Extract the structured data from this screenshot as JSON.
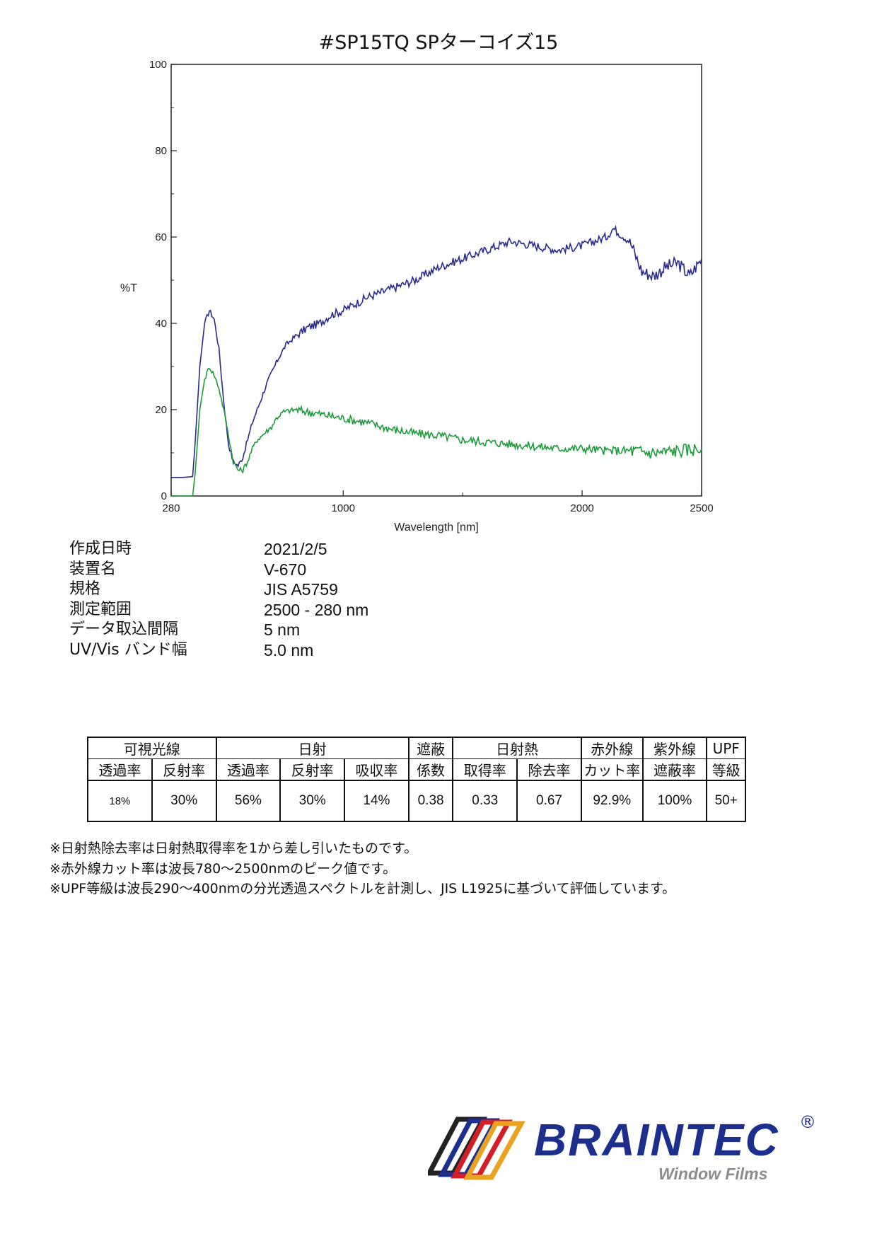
{
  "title": "#SP15TQ  SPターコイズ15",
  "chart_data": {
    "type": "line",
    "xlabel": "Wavelength [nm]",
    "ylabel": "%T",
    "xlim": [
      280,
      2500
    ],
    "ylim": [
      0,
      100
    ],
    "x_ticks": [
      280,
      1000,
      2000,
      2500
    ],
    "y_ticks": [
      0,
      20,
      40,
      60,
      80,
      100
    ],
    "colors": {
      "blue": "#2a2a8c",
      "green": "#1f9a3c",
      "axis": "#222222"
    },
    "series": [
      {
        "color": "blue",
        "x": [
          280,
          330,
          370,
          380,
          400,
          420,
          440,
          460,
          480,
          500,
          520,
          540,
          560,
          580,
          600,
          620,
          640,
          660,
          680,
          700,
          730,
          760,
          800,
          850,
          900,
          950,
          1000,
          1100,
          1200,
          1300,
          1400,
          1500,
          1600,
          1700,
          1800,
          1900,
          2000,
          2100,
          2130,
          2200,
          2250,
          2300,
          2350,
          2400,
          2450,
          2500
        ],
        "y": [
          4.3,
          4.3,
          4.5,
          12,
          30,
          40,
          43,
          41,
          34,
          22,
          12,
          8,
          7,
          9,
          13,
          17,
          20,
          23,
          26,
          28.5,
          32,
          35,
          37,
          39,
          40,
          42,
          43,
          46,
          48,
          50,
          53,
          55,
          57,
          59,
          58,
          57,
          58,
          60,
          62,
          59,
          52,
          51,
          53,
          54,
          51,
          55
        ]
      },
      {
        "color": "green",
        "x": [
          280,
          370,
          380,
          400,
          420,
          440,
          460,
          480,
          500,
          520,
          540,
          560,
          580,
          600,
          620,
          640,
          660,
          680,
          700,
          720,
          750,
          800,
          850,
          900,
          950,
          1000,
          1100,
          1200,
          1300,
          1400,
          1500,
          1600,
          1700,
          1800,
          1900,
          2000,
          2100,
          2200,
          2300,
          2400,
          2500
        ],
        "y": [
          0,
          0,
          5,
          20,
          27,
          30,
          28,
          25,
          20,
          14,
          8,
          6,
          6,
          8,
          11,
          13,
          14,
          15,
          16,
          18,
          19.5,
          20,
          19.5,
          19,
          18.5,
          18,
          17,
          15.5,
          14.5,
          14,
          13,
          12.5,
          12,
          11.5,
          11,
          11,
          10.5,
          10.5,
          10,
          10.5,
          11
        ]
      }
    ]
  },
  "info": [
    {
      "key": "作成日時",
      "value": "2021/2/5"
    },
    {
      "key": "装置名",
      "value": "V-670"
    },
    {
      "key": "規格",
      "value": "JIS A5759"
    },
    {
      "key": "測定範囲",
      "value": "2500 - 280 nm"
    },
    {
      "key": "データ取込間隔",
      "value": "5 nm"
    },
    {
      "key": "UV/Vis バンド幅",
      "value": "5.0 nm"
    }
  ],
  "table": {
    "groups": [
      "可視光線",
      "日射",
      "遮蔽",
      "日射熱",
      "赤外線",
      "紫外線",
      "UPF"
    ],
    "subs": [
      "透過率",
      "反射率",
      "透過率",
      "反射率",
      "吸収率",
      "係数",
      "取得率",
      "除去率",
      "カット率",
      "遮蔽率",
      "等級"
    ],
    "values": [
      "18%",
      "30%",
      "56%",
      "30%",
      "14%",
      "0.38",
      "0.33",
      "0.67",
      "92.9%",
      "100%",
      "50+"
    ]
  },
  "notes": [
    "※日射熱除去率は日射熱取得率を1から差し引いたものです。",
    "※赤外線カット率は波長780～2500nmのピーク値です。",
    "※UPF等級は波長290～400nmの分光透過スペクトルを計測し、JIS L1925に基づいて評価しています。"
  ],
  "logo": {
    "brand": "BRAINTEC",
    "registered": "®",
    "tagline": "Window Films",
    "colors": {
      "brand": "#1d2f8c",
      "tagline": "#8c8c8c",
      "stripe1": "#222222",
      "stripe2": "#1d2f8c",
      "stripe3": "#d21e26",
      "stripe4": "#e9a321"
    }
  }
}
